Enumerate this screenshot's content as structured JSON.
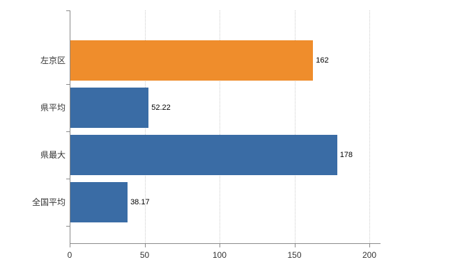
{
  "chart_data": {
    "type": "bar",
    "orientation": "horizontal",
    "title": "",
    "xlabel": "",
    "ylabel": "",
    "categories": [
      "左京区",
      "県平均",
      "県最大",
      "全国平均"
    ],
    "values": [
      162,
      52.22,
      178,
      38.17
    ],
    "value_labels": [
      "162",
      "52.22",
      "178",
      "38.17"
    ],
    "bar_colors": [
      "#EF8D2C",
      "#3A6CA5",
      "#3A6CA5",
      "#3A6CA5"
    ],
    "highlight_color": "#EF8D2C",
    "default_color": "#3A6CA5",
    "xlim": [
      0,
      207
    ],
    "x_ticks": [
      0,
      50,
      100,
      150,
      200
    ],
    "x_tick_labels": [
      "0",
      "50",
      "100",
      "150",
      "200"
    ],
    "grid": true,
    "gridline_style": "dotted",
    "legend": false,
    "background": "#ffffff"
  }
}
